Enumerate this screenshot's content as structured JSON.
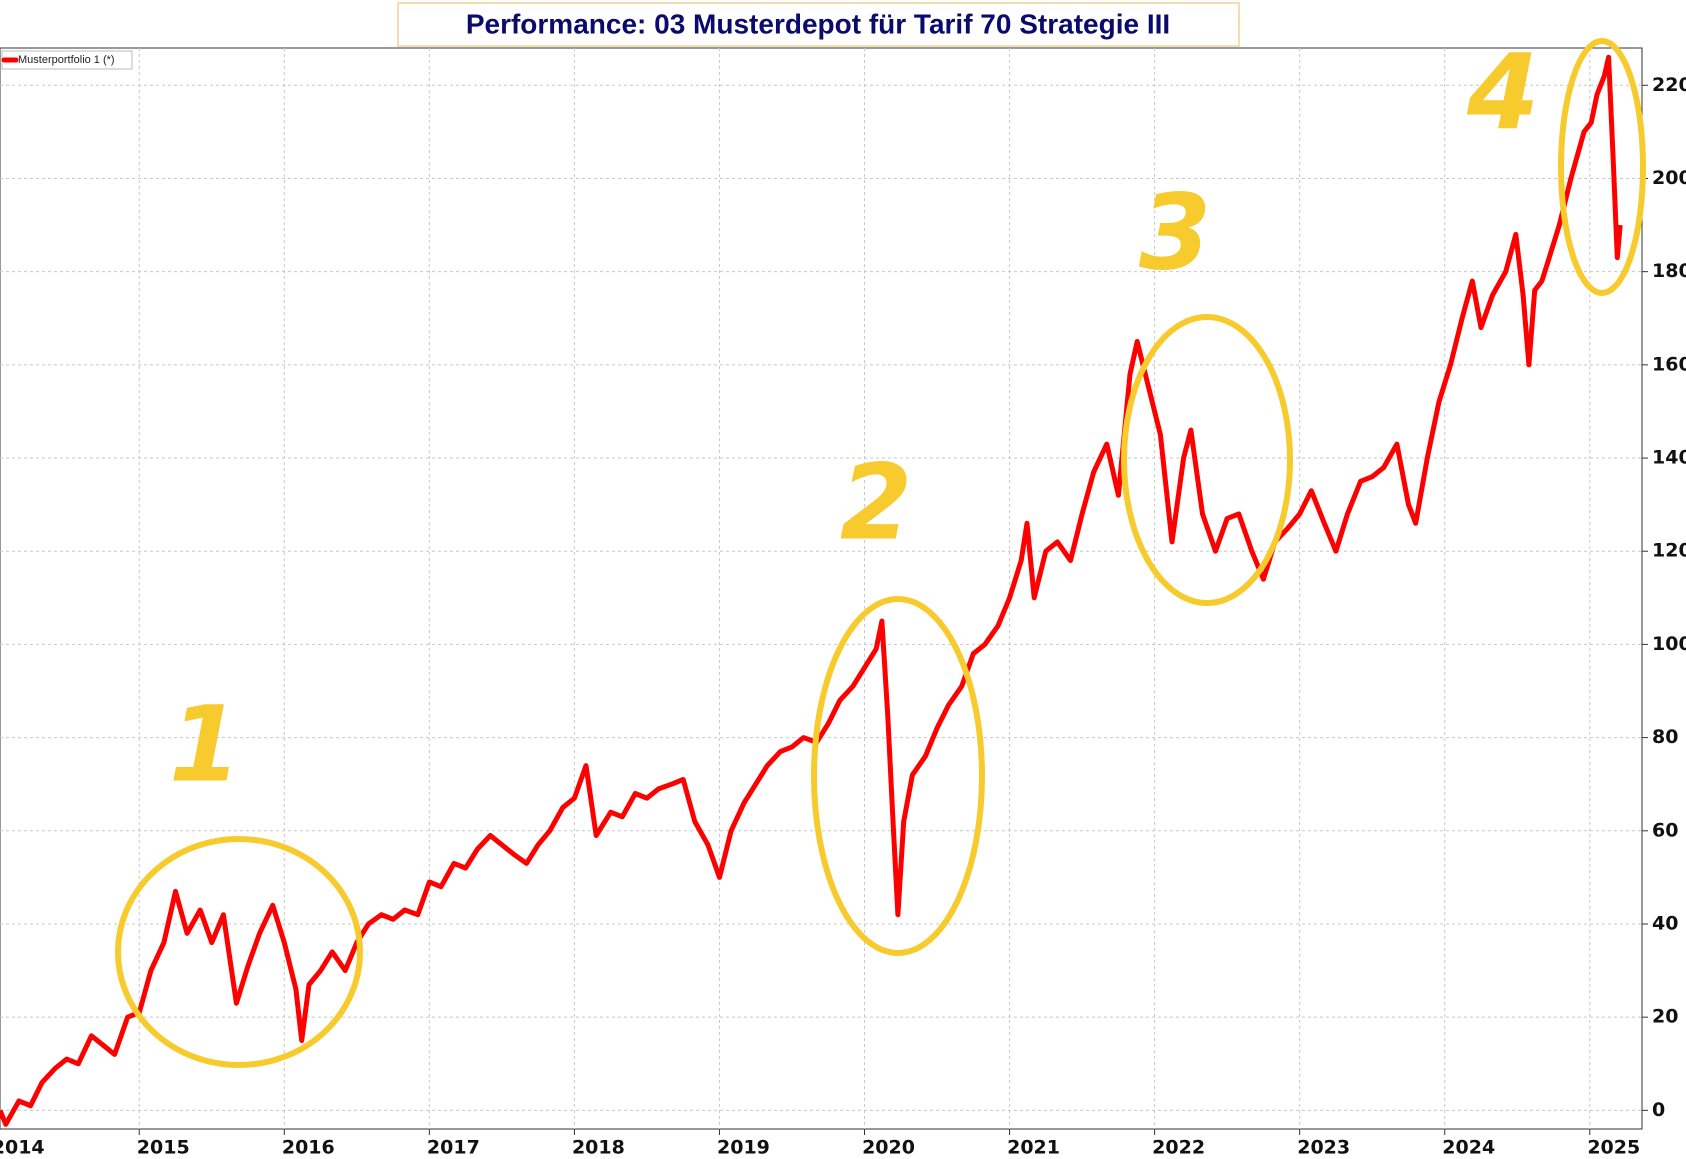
{
  "chart_data": {
    "type": "line",
    "title": "Performance: 03 Musterdepot für Tarif 70 Strategie III",
    "xlim": [
      2014.04,
      2025.36
    ],
    "xticks": [
      2014,
      2015,
      2016,
      2017,
      2018,
      2019,
      2020,
      2021,
      2022,
      2023,
      2024,
      2025
    ],
    "ylim": [
      -4,
      228
    ],
    "yticks": [
      0,
      20,
      40,
      60,
      80,
      100,
      120,
      140,
      160,
      180,
      200,
      220
    ],
    "grid": true,
    "legend": "top-left",
    "annotations": [
      "1",
      "2",
      "3",
      "4"
    ],
    "annotation_color": "#f7cb2d",
    "series": [
      {
        "name": "Musterportfolio 1 (*)",
        "color": "#ff0000",
        "x": [
          2014.04,
          2014.08,
          2014.17,
          2014.25,
          2014.33,
          2014.42,
          2014.5,
          2014.58,
          2014.67,
          2014.75,
          2014.83,
          2014.92,
          2015.0,
          2015.08,
          2015.17,
          2015.25,
          2015.33,
          2015.42,
          2015.5,
          2015.58,
          2015.67,
          2015.75,
          2015.83,
          2015.92,
          2016.0,
          2016.08,
          2016.12,
          2016.17,
          2016.25,
          2016.33,
          2016.42,
          2016.5,
          2016.58,
          2016.67,
          2016.75,
          2016.83,
          2016.92,
          2017.0,
          2017.08,
          2017.17,
          2017.25,
          2017.33,
          2017.42,
          2017.5,
          2017.58,
          2017.67,
          2017.75,
          2017.83,
          2017.92,
          2018.0,
          2018.08,
          2018.15,
          2018.25,
          2018.33,
          2018.42,
          2018.5,
          2018.58,
          2018.67,
          2018.75,
          2018.83,
          2018.92,
          2019.0,
          2019.08,
          2019.17,
          2019.25,
          2019.33,
          2019.42,
          2019.5,
          2019.58,
          2019.67,
          2019.75,
          2019.83,
          2019.92,
          2020.0,
          2020.08,
          2020.12,
          2020.16,
          2020.2,
          2020.23,
          2020.27,
          2020.33,
          2020.42,
          2020.5,
          2020.58,
          2020.67,
          2020.75,
          2020.83,
          2020.92,
          2021.0,
          2021.08,
          2021.12,
          2021.17,
          2021.25,
          2021.33,
          2021.42,
          2021.5,
          2021.58,
          2021.67,
          2021.75,
          2021.83,
          2021.88,
          2021.96,
          2022.04,
          2022.12,
          2022.2,
          2022.25,
          2022.33,
          2022.42,
          2022.5,
          2022.58,
          2022.67,
          2022.75,
          2022.83,
          2022.92,
          2023.0,
          2023.08,
          2023.17,
          2023.25,
          2023.33,
          2023.42,
          2023.5,
          2023.58,
          2023.67,
          2023.75,
          2023.8,
          2023.88,
          2023.96,
          2024.04,
          2024.12,
          2024.19,
          2024.25,
          2024.33,
          2024.42,
          2024.49,
          2024.54,
          2024.58,
          2024.62,
          2024.67,
          2024.72,
          2024.79,
          2024.87,
          2024.96,
          2025.01,
          2025.05,
          2025.1,
          2025.13,
          2025.16,
          2025.19,
          2025.21
        ],
        "values": [
          0,
          -3,
          2,
          1,
          6,
          9,
          11,
          10,
          16,
          14,
          12,
          20,
          21,
          30,
          36,
          47,
          38,
          43,
          36,
          42,
          23,
          31,
          38,
          44,
          36,
          26,
          15,
          27,
          30,
          34,
          30,
          36,
          40,
          42,
          41,
          43,
          42,
          49,
          48,
          53,
          52,
          56,
          59,
          57,
          55,
          53,
          57,
          60,
          65,
          67,
          74,
          59,
          64,
          63,
          68,
          67,
          69,
          70,
          71,
          62,
          57,
          50,
          60,
          66,
          70,
          74,
          77,
          78,
          80,
          79,
          83,
          88,
          91,
          95,
          99,
          105,
          85,
          60,
          42,
          62,
          72,
          76,
          82,
          87,
          91,
          98,
          100,
          104,
          110,
          118,
          126,
          110,
          120,
          122,
          118,
          128,
          137,
          143,
          132,
          158,
          165,
          155,
          145,
          122,
          140,
          146,
          128,
          120,
          127,
          128,
          120,
          114,
          122,
          125,
          128,
          133,
          126,
          120,
          128,
          135,
          136,
          138,
          143,
          130,
          126,
          140,
          152,
          160,
          170,
          178,
          168,
          175,
          180,
          188,
          175,
          160,
          176,
          178,
          183,
          190,
          200,
          210,
          212,
          218,
          222,
          226,
          205,
          183,
          190
        ]
      }
    ]
  }
}
